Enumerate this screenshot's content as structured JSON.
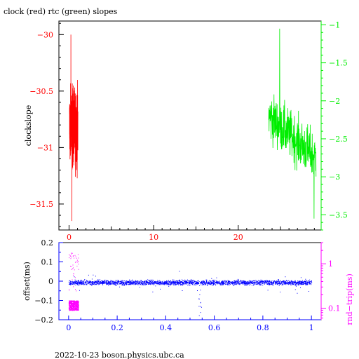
{
  "header": {
    "title": "clock (red) rtc (green) slopes"
  },
  "footer": {
    "text": "2022-10-23  boson.physics.ubc.ca"
  },
  "colors": {
    "clock": "#ff0000",
    "rtc": "#00ee00",
    "offset": "#0000ff",
    "roundtrip": "#ff00ff",
    "frame": "#000000",
    "background": "#ffffff"
  },
  "chart_data": [
    {
      "type": "line",
      "title": "clock (red) rtc (green) slopes",
      "ylabel": "clockslope",
      "xlim": [
        -1.2,
        29.8
      ],
      "ylim": [
        -31.73,
        -29.88
      ],
      "y2lim": [
        -3.7,
        -0.95
      ],
      "x_ticks": [
        0,
        10,
        20
      ],
      "y_ticks": [
        -30,
        -30.5,
        -31,
        -31.5
      ],
      "y2_ticks": [
        -1,
        -1.5,
        -2,
        -2.5,
        -3,
        -3.5
      ],
      "grid": false,
      "legend": "none (colors named in title)",
      "series": [
        {
          "color": "red",
          "axis": "left",
          "x_range": [
            0.05,
            1.05
          ],
          "y_range": [
            -31.65,
            -30.0
          ],
          "typical": [
            -31.2,
            -30.45
          ]
        },
        {
          "color": "green",
          "axis": "right",
          "x_range": [
            23.6,
            29.2
          ],
          "y_range": [
            -3.55,
            -1.05
          ],
          "typical": [
            -3.1,
            -1.8
          ]
        }
      ]
    },
    {
      "type": "scatter",
      "ylabel": "offset(ms)",
      "y2label": "rnd−trip(ms)",
      "xlim": [
        -0.04,
        1.04
      ],
      "ylim": [
        -0.2,
        0.2
      ],
      "y2scale": "log",
      "y2lim": [
        0.055,
        3.0
      ],
      "x_ticks": [
        0,
        0.2,
        0.4,
        0.6,
        0.8,
        1
      ],
      "y_ticks": [
        0.2,
        0.1,
        0,
        -0.1,
        -0.2
      ],
      "y2_ticks": [
        1,
        0.1
      ],
      "grid": false,
      "series": [
        {
          "color": "blue",
          "axis": "left",
          "x_range": [
            0,
            1
          ],
          "y_band": [
            -0.03,
            0.02
          ],
          "dip_at_x": 0.54,
          "dip_min": -0.18
        },
        {
          "color": "magenta",
          "axis": "right",
          "x_range": [
            0,
            0.04
          ],
          "y_band": [
            0.09,
            0.15
          ]
        }
      ]
    }
  ]
}
